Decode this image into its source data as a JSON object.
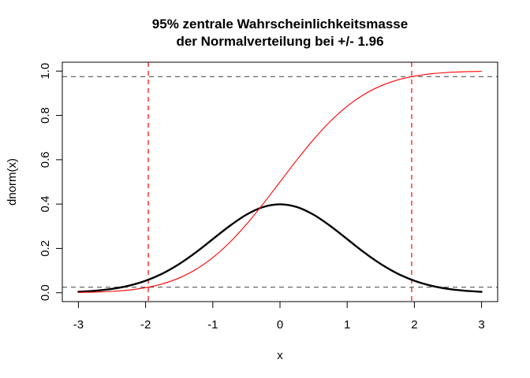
{
  "chart_data": {
    "type": "line",
    "title_lines": [
      "95% zentrale Wahrscheinlichkeitsmasse",
      "der Normalverteilung bei +/- 1.96"
    ],
    "xlabel": "x",
    "ylabel": "dnorm(x)",
    "xlim": [
      -3,
      3
    ],
    "ylim": [
      0,
      1
    ],
    "x_ticks": [
      -3,
      -2,
      -1,
      0,
      1,
      2,
      3
    ],
    "x_tick_labels": [
      "-3",
      "-2",
      "-1",
      "0",
      "1",
      "2",
      "3"
    ],
    "y_ticks": [
      0,
      0.2,
      0.4,
      0.6,
      0.8,
      1.0
    ],
    "y_tick_labels": [
      "0.0",
      "0.2",
      "0.4",
      "0.6",
      "0.8",
      "1.0"
    ],
    "grid": false,
    "series": [
      {
        "color": "#000000",
        "line_width": "thick",
        "x": [
          -3.0,
          -2.75,
          -2.5,
          -2.25,
          -2.0,
          -1.75,
          -1.5,
          -1.25,
          -1.0,
          -0.75,
          -0.5,
          -0.25,
          0.0,
          0.25,
          0.5,
          0.75,
          1.0,
          1.25,
          1.5,
          1.75,
          2.0,
          2.25,
          2.5,
          2.75,
          3.0
        ],
        "y": [
          0.0044,
          0.0091,
          0.0175,
          0.0317,
          0.054,
          0.0863,
          0.1295,
          0.1826,
          0.242,
          0.3011,
          0.3521,
          0.3867,
          0.3989,
          0.3867,
          0.3521,
          0.3011,
          0.242,
          0.1826,
          0.1295,
          0.0863,
          0.054,
          0.0317,
          0.0175,
          0.0091,
          0.0044
        ]
      },
      {
        "color": "#ff0000",
        "line_width": "thin",
        "x": [
          -3.0,
          -2.75,
          -2.5,
          -2.25,
          -2.0,
          -1.75,
          -1.5,
          -1.25,
          -1.0,
          -0.75,
          -0.5,
          -0.25,
          0.0,
          0.25,
          0.5,
          0.75,
          1.0,
          1.25,
          1.5,
          1.75,
          2.0,
          2.25,
          2.5,
          2.75,
          3.0
        ],
        "y": [
          0.0013,
          0.003,
          0.0062,
          0.0122,
          0.0228,
          0.0401,
          0.0668,
          0.1056,
          0.1587,
          0.2266,
          0.3085,
          0.4013,
          0.5,
          0.5987,
          0.6915,
          0.7734,
          0.8413,
          0.8944,
          0.9332,
          0.9599,
          0.9772,
          0.9878,
          0.9938,
          0.997,
          0.9987
        ]
      }
    ],
    "reference_lines": {
      "vertical": {
        "x": [
          -1.96,
          1.96
        ],
        "color": "#ff0000",
        "style": "dashed"
      },
      "horizontal": {
        "y": [
          0.025,
          0.975
        ],
        "color": "#555555",
        "style": "dashed"
      }
    }
  }
}
